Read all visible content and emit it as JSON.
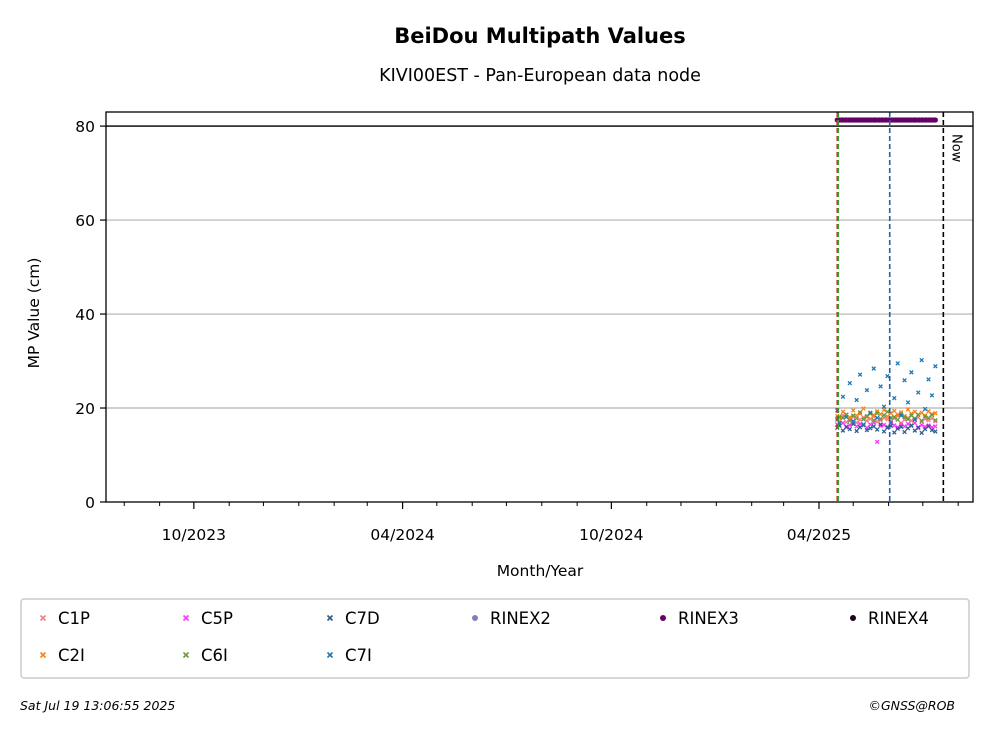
{
  "chart_data": {
    "type": "scatter",
    "title": "BeiDou Multipath Values",
    "subtitle": "KIVI00EST - Pan-European data node",
    "xlabel": "Month/Year",
    "ylabel": "MP Value (cm)",
    "x_type": "date",
    "xlim": [
      "2023-07-16",
      "2025-08-14"
    ],
    "ylim": [
      0,
      83
    ],
    "x_ticks": [
      {
        "date": "2023-10-01",
        "label": "10/2023"
      },
      {
        "date": "2024-04-01",
        "label": "04/2024"
      },
      {
        "date": "2024-10-01",
        "label": "10/2024"
      },
      {
        "date": "2025-04-01",
        "label": "04/2025"
      }
    ],
    "x_minor_ticks": [
      "2023-08-01",
      "2023-09-01",
      "2023-11-01",
      "2023-12-01",
      "2024-01-01",
      "2024-02-01",
      "2024-03-01",
      "2024-05-01",
      "2024-06-01",
      "2024-07-01",
      "2024-08-01",
      "2024-09-01",
      "2024-11-01",
      "2024-12-01",
      "2025-01-01",
      "2025-02-01",
      "2025-03-01",
      "2025-05-01",
      "2025-06-01",
      "2025-07-01",
      "2025-08-01"
    ],
    "y_ticks": [
      0,
      20,
      40,
      60,
      80
    ],
    "grid": "y",
    "horizontal_lines": [
      {
        "y": 80,
        "color": "#000000"
      }
    ],
    "vertical_lines": [
      {
        "date": "2025-04-17",
        "color": "#d62728",
        "style": "dashed"
      },
      {
        "date": "2025-04-17",
        "color": "#2ca02c",
        "style": "dashed"
      },
      {
        "date": "2025-06-02",
        "color": "#1f5fa8",
        "style": "dashed"
      },
      {
        "date": "2025-07-19",
        "color": "#000000",
        "style": "dashed",
        "label": "Now"
      }
    ],
    "date_range": [
      "2025-04-17",
      "2025-07-12"
    ],
    "series": [
      {
        "name": "C1P",
        "color": "#f08080",
        "marker": "x",
        "values": [
          17.8,
          17.2,
          18.4,
          17.0,
          17.6,
          18.1,
          16.9,
          17.5,
          18.0,
          17.3,
          17.7,
          18.2,
          17.1,
          17.4,
          17.9,
          17.6,
          17.2,
          17.8,
          18.3,
          16.8,
          17.5,
          17.9,
          17.3,
          17.6,
          18.0,
          17.1,
          17.7,
          17.4,
          17.8,
          17.2
        ]
      },
      {
        "name": "C2I",
        "color": "#ff7f0e",
        "marker": "x",
        "values": [
          18.3,
          17.9,
          19.2,
          18.6,
          18.0,
          19.5,
          18.4,
          18.8,
          19.9,
          18.1,
          19.0,
          18.5,
          19.3,
          18.7,
          19.6,
          18.2,
          18.9,
          19.4,
          18.6,
          19.1,
          18.3,
          19.7,
          18.8,
          19.2,
          18.5,
          19.0,
          18.4,
          19.3,
          18.7,
          18.9
        ]
      },
      {
        "name": "C5P",
        "color": "#ff33ff",
        "marker": "x",
        "values": [
          16.5,
          16.2,
          16.8,
          15.9,
          16.4,
          16.7,
          16.1,
          16.6,
          16.3,
          15.8,
          16.5,
          16.9,
          12.8,
          16.2,
          16.4,
          16.0,
          16.7,
          16.3,
          15.9,
          16.5,
          16.1,
          16.6,
          16.2,
          16.8,
          15.7,
          16.4,
          16.0,
          16.3,
          15.9,
          16.1
        ]
      },
      {
        "name": "C6I",
        "color": "#6a9a3a",
        "marker": "x",
        "values": [
          17.5,
          18.2,
          17.9,
          18.6,
          17.3,
          18.4,
          17.8,
          19.1,
          17.6,
          18.3,
          18.8,
          17.4,
          18.9,
          17.7,
          18.5,
          19.2,
          17.9,
          18.1,
          17.5,
          18.7,
          18.0,
          17.6,
          18.4,
          17.8,
          18.6,
          17.3,
          18.2,
          17.9,
          18.5,
          17.4
        ]
      },
      {
        "name": "C7D",
        "color": "#2c5d8f",
        "marker": "x",
        "values": [
          15.8,
          16.3,
          15.2,
          16.0,
          15.5,
          16.6,
          15.1,
          15.9,
          16.4,
          15.3,
          15.7,
          16.1,
          15.4,
          16.5,
          15.0,
          15.8,
          16.2,
          14.8,
          15.6,
          16.0,
          14.9,
          15.7,
          16.3,
          15.2,
          15.9,
          14.7,
          15.5,
          16.1,
          15.3,
          15.0
        ]
      },
      {
        "name": "C7I",
        "color": "#1f77b4",
        "marker": "x",
        "values": [
          19.5,
          16.8,
          22.4,
          18.1,
          25.3,
          17.2,
          21.7,
          27.1,
          16.5,
          23.8,
          19.0,
          28.4,
          17.9,
          24.6,
          20.3,
          26.8,
          16.9,
          22.1,
          29.5,
          18.4,
          25.9,
          21.2,
          27.6,
          17.5,
          23.3,
          30.2,
          19.8,
          26.1,
          22.7,
          28.9
        ]
      },
      {
        "name": "RINEX2",
        "color": "#7f7fbf",
        "marker": "o",
        "values": []
      },
      {
        "name": "RINEX3",
        "color": "#660066",
        "marker": "o",
        "values": [
          81.3
        ]
      },
      {
        "name": "RINEX4",
        "color": "#220022",
        "marker": "o",
        "values": []
      }
    ]
  },
  "legend": {
    "entries": [
      {
        "name": "C1P",
        "color": "#f08080",
        "marker": "x"
      },
      {
        "name": "C5P",
        "color": "#ff33ff",
        "marker": "x"
      },
      {
        "name": "C7D",
        "color": "#2c5d8f",
        "marker": "x"
      },
      {
        "name": "RINEX2",
        "color": "#7f7fbf",
        "marker": "o"
      },
      {
        "name": "RINEX3",
        "color": "#660066",
        "marker": "o"
      },
      {
        "name": "RINEX4",
        "color": "#220022",
        "marker": "o"
      },
      {
        "name": "C2I",
        "color": "#ff7f0e",
        "marker": "x"
      },
      {
        "name": "C6I",
        "color": "#6a9a3a",
        "marker": "x"
      },
      {
        "name": "C7I",
        "color": "#1f77b4",
        "marker": "x"
      }
    ]
  },
  "footer": {
    "timestamp": "Sat Jul 19 13:06:55 2025",
    "credit": "©GNSS@ROB"
  }
}
